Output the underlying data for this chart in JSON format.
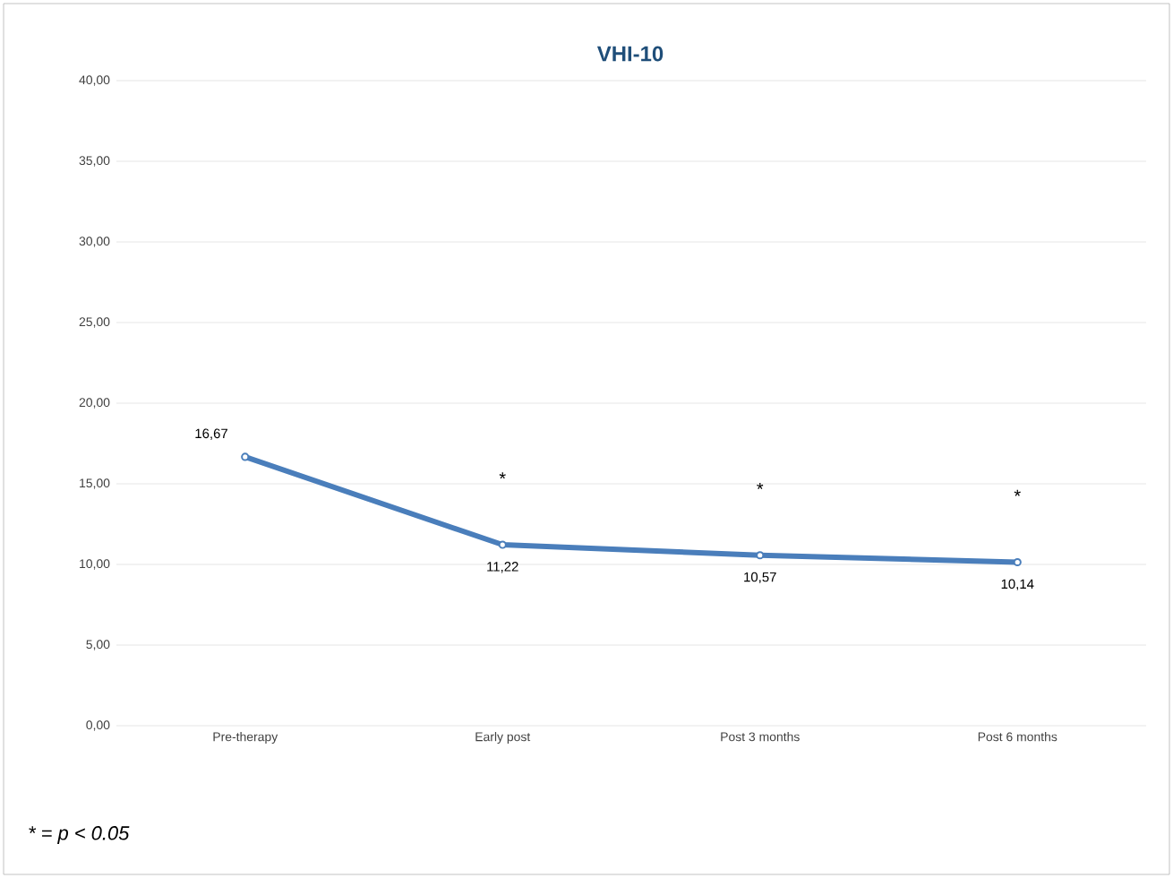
{
  "chart_data": {
    "type": "line",
    "title": "VHI-10",
    "categories": [
      "Pre-therapy",
      "Early post",
      "Post 3 months",
      "Post 6 months"
    ],
    "series": [
      {
        "color": "#4a7ebb",
        "values": [
          16.67,
          11.22,
          10.57,
          10.14
        ],
        "value_labels": [
          "16,67",
          "11,22",
          "10,57",
          "10,14"
        ]
      }
    ],
    "ylim": [
      0,
      40
    ],
    "yticks": [
      {
        "value": 0,
        "label": "0,00"
      },
      {
        "value": 5,
        "label": "5,00"
      },
      {
        "value": 10,
        "label": "10,00"
      },
      {
        "value": 15,
        "label": "15,00"
      },
      {
        "value": 20,
        "label": "20,00"
      },
      {
        "value": 25,
        "label": "25,00"
      },
      {
        "value": 30,
        "label": "30,00"
      },
      {
        "value": 35,
        "label": "35,00"
      },
      {
        "value": 40,
        "label": "40,00"
      }
    ],
    "grid": "y",
    "marker": "circle",
    "line_style": "solid",
    "annotations": [
      "*",
      "*",
      "*",
      "* = p < 0.05"
    ]
  }
}
